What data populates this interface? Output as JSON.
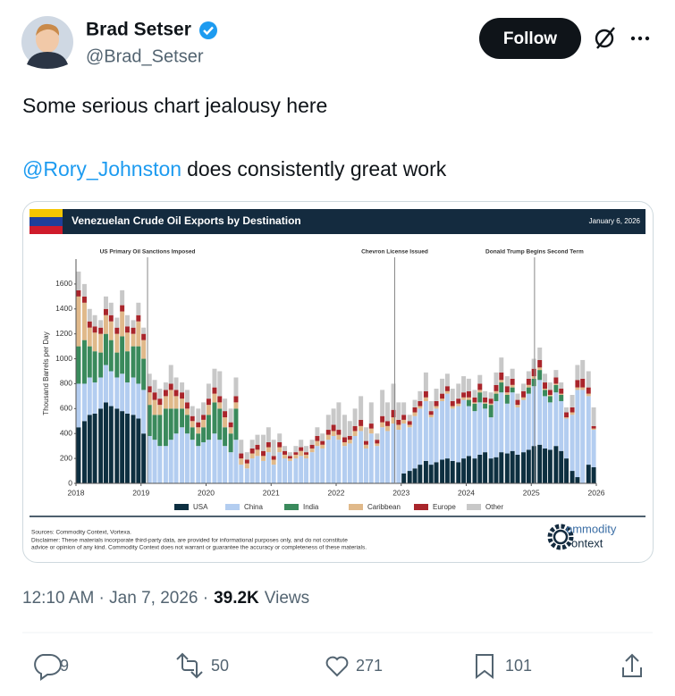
{
  "tweet": {
    "author_name": "Brad Setser",
    "handle": "@Brad_Setser",
    "follow": "Follow",
    "line1": "Some serious chart jealousy here",
    "mention": "@Rory_Johnston",
    "line2": "does consistently great work",
    "timestamp": "12:10 AM · Jan 7, 2026 ·",
    "views_count": "39.2K",
    "views_label": "Views",
    "replies": 9,
    "retweets": 50,
    "likes": 271,
    "bookmarks": 101
  },
  "chart_data": {
    "type": "bar",
    "stacked": true,
    "title": "Venezuelan Crude Oil Exports by Destination",
    "date": "January 6, 2026",
    "ylabel": "Thousand Barrels per Day",
    "annotations": [
      {
        "x": 2019.1,
        "label": "US Primary Oil Sanctions Imposed"
      },
      {
        "x": 2022.9,
        "label": "Chevron License Issued"
      },
      {
        "x": 2025.05,
        "label": "Donald Trump Begins Second Term"
      }
    ],
    "xlim": [
      2018,
      2026
    ],
    "xticks": [
      2018,
      2019,
      2020,
      2021,
      2022,
      2023,
      2024,
      2025,
      2026
    ],
    "ylim": [
      0,
      1800
    ],
    "yticks": [
      0,
      200,
      400,
      600,
      800,
      1000,
      1200,
      1400,
      1600
    ],
    "x": [
      2018.04,
      2018.13,
      2018.21,
      2018.29,
      2018.38,
      2018.46,
      2018.54,
      2018.63,
      2018.71,
      2018.79,
      2018.88,
      2018.96,
      2019.04,
      2019.13,
      2019.21,
      2019.29,
      2019.38,
      2019.46,
      2019.54,
      2019.63,
      2019.71,
      2019.79,
      2019.88,
      2019.96,
      2020.04,
      2020.13,
      2020.21,
      2020.29,
      2020.38,
      2020.46,
      2020.54,
      2020.63,
      2020.71,
      2020.79,
      2020.88,
      2020.96,
      2021.04,
      2021.13,
      2021.21,
      2021.29,
      2021.38,
      2021.46,
      2021.54,
      2021.63,
      2021.71,
      2021.79,
      2021.88,
      2021.96,
      2022.04,
      2022.13,
      2022.21,
      2022.29,
      2022.38,
      2022.46,
      2022.54,
      2022.63,
      2022.71,
      2022.79,
      2022.88,
      2022.96,
      2023.04,
      2023.13,
      2023.21,
      2023.29,
      2023.38,
      2023.46,
      2023.54,
      2023.63,
      2023.71,
      2023.79,
      2023.88,
      2023.96,
      2024.04,
      2024.13,
      2024.21,
      2024.29,
      2024.38,
      2024.46,
      2024.54,
      2024.63,
      2024.71,
      2024.79,
      2024.88,
      2024.96,
      2025.04,
      2025.13,
      2025.21,
      2025.29,
      2025.38,
      2025.46,
      2025.54,
      2025.63,
      2025.71,
      2025.79,
      2025.88,
      2025.96
    ],
    "series": [
      {
        "name": "USA",
        "color": "#0d2f40",
        "values": [
          450,
          500,
          550,
          560,
          600,
          650,
          620,
          600,
          580,
          560,
          550,
          520,
          400,
          0,
          0,
          0,
          0,
          0,
          0,
          0,
          0,
          0,
          0,
          0,
          0,
          0,
          0,
          0,
          0,
          0,
          0,
          0,
          0,
          0,
          0,
          0,
          0,
          0,
          0,
          0,
          0,
          0,
          0,
          0,
          0,
          0,
          0,
          0,
          0,
          0,
          0,
          0,
          0,
          0,
          0,
          0,
          0,
          0,
          0,
          0,
          80,
          100,
          120,
          150,
          180,
          150,
          170,
          190,
          200,
          180,
          170,
          200,
          220,
          200,
          230,
          250,
          200,
          210,
          250,
          240,
          260,
          230,
          250,
          270,
          300,
          310,
          280,
          270,
          300,
          260,
          200,
          100,
          50,
          0,
          150,
          130
        ]
      },
      {
        "name": "China",
        "color": "#b3cdf0",
        "values": [
          350,
          300,
          300,
          250,
          250,
          300,
          280,
          250,
          300,
          250,
          300,
          280,
          350,
          380,
          350,
          300,
          300,
          350,
          400,
          450,
          400,
          350,
          300,
          330,
          350,
          400,
          350,
          300,
          250,
          350,
          150,
          120,
          200,
          220,
          180,
          250,
          150,
          250,
          200,
          180,
          200,
          220,
          200,
          250,
          300,
          280,
          350,
          380,
          350,
          300,
          320,
          380,
          420,
          280,
          400,
          300,
          450,
          420,
          480,
          430,
          400,
          350,
          420,
          450,
          480,
          380,
          430,
          470,
          520,
          420,
          450,
          470,
          400,
          380,
          420,
          350,
          330,
          450,
          480,
          400,
          470,
          380,
          420,
          450,
          480,
          520,
          420,
          380,
          430,
          400,
          320,
          450,
          700,
          750,
          550,
          300
        ]
      },
      {
        "name": "India",
        "color": "#3a8a5c",
        "values": [
          300,
          350,
          250,
          250,
          200,
          250,
          250,
          200,
          300,
          250,
          250,
          300,
          250,
          250,
          200,
          250,
          300,
          250,
          200,
          150,
          150,
          100,
          100,
          120,
          200,
          250,
          250,
          150,
          150,
          250,
          0,
          0,
          0,
          0,
          0,
          0,
          0,
          0,
          0,
          0,
          0,
          0,
          0,
          0,
          0,
          0,
          0,
          0,
          0,
          0,
          0,
          0,
          0,
          0,
          0,
          0,
          0,
          0,
          0,
          0,
          0,
          0,
          0,
          0,
          0,
          0,
          0,
          0,
          0,
          0,
          0,
          0,
          50,
          60,
          80,
          40,
          100,
          60,
          80,
          70,
          40,
          0,
          0,
          50,
          60,
          80,
          50,
          50,
          60,
          50,
          0,
          0,
          0,
          0,
          0,
          0
        ]
      },
      {
        "name": "Caribbean",
        "color": "#e0b98a",
        "values": [
          400,
          300,
          150,
          150,
          150,
          150,
          150,
          150,
          200,
          150,
          100,
          200,
          150,
          100,
          120,
          80,
          100,
          150,
          100,
          80,
          50,
          50,
          50,
          60,
          80,
          70,
          50,
          80,
          50,
          50,
          50,
          40,
          40,
          50,
          40,
          40,
          40,
          40,
          30,
          20,
          30,
          40,
          30,
          30,
          40,
          30,
          40,
          40,
          40,
          30,
          30,
          40,
          40,
          30,
          40,
          20,
          40,
          40,
          50,
          40,
          30,
          20,
          30,
          20,
          30,
          20,
          20,
          20,
          20,
          20,
          20,
          20,
          20,
          10,
          20,
          10,
          10,
          20,
          20,
          20,
          20,
          20,
          20,
          20,
          20,
          20,
          10,
          10,
          10,
          10,
          10,
          20,
          20,
          20,
          20,
          10
        ]
      },
      {
        "name": "Europe",
        "color": "#a9252b",
        "values": [
          50,
          50,
          50,
          50,
          50,
          50,
          50,
          50,
          50,
          50,
          50,
          50,
          50,
          50,
          60,
          50,
          50,
          50,
          50,
          50,
          50,
          40,
          40,
          40,
          50,
          50,
          50,
          50,
          40,
          50,
          40,
          30,
          40,
          40,
          40,
          40,
          30,
          40,
          30,
          20,
          20,
          30,
          20,
          30,
          40,
          30,
          40,
          50,
          40,
          40,
          30,
          40,
          50,
          30,
          40,
          30,
          50,
          40,
          60,
          40,
          40,
          30,
          40,
          40,
          50,
          30,
          40,
          40,
          40,
          40,
          40,
          40,
          50,
          40,
          50,
          40,
          40,
          50,
          60,
          50,
          50,
          40,
          50,
          50,
          60,
          60,
          50,
          40,
          50,
          40,
          40,
          40,
          60,
          70,
          50,
          20
        ]
      },
      {
        "name": "Other",
        "color": "#c8c8c8",
        "values": [
          150,
          100,
          100,
          90,
          60,
          100,
          100,
          80,
          120,
          90,
          60,
          100,
          50,
          100,
          100,
          80,
          60,
          150,
          100,
          80,
          100,
          80,
          110,
          100,
          120,
          150,
          200,
          100,
          110,
          150,
          110,
          60,
          70,
          80,
          130,
          120,
          130,
          70,
          40,
          30,
          50,
          60,
          50,
          40,
          70,
          60,
          120,
          130,
          220,
          180,
          120,
          140,
          190,
          110,
          170,
          50,
          210,
          150,
          210,
          140,
          100,
          50,
          60,
          80,
          150,
          80,
          100,
          120,
          100,
          100,
          120,
          130,
          100,
          60,
          70,
          50,
          50,
          100,
          120,
          80,
          80,
          50,
          60,
          60,
          80,
          100,
          70,
          60,
          60,
          50,
          40,
          100,
          120,
          150,
          130,
          150
        ]
      }
    ],
    "sources": "Sources: Commodity Context, Vortexa.",
    "disclaimer": [
      "Disclaimer: These materials incorporate third-party data, are provided for informational purposes only, and do not constitute",
      "advice or opinion of any kind. Commodity Context does not warrant or guarantee the accuracy or completeness of these materials."
    ],
    "logo": [
      "ommodity",
      "ontext"
    ]
  }
}
